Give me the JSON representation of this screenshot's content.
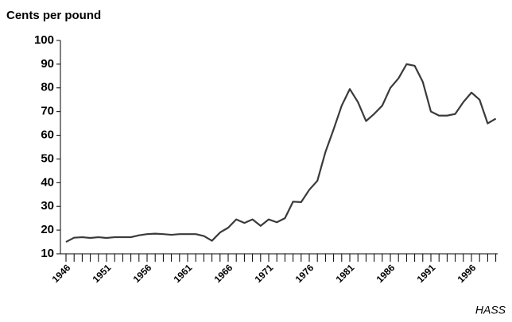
{
  "chart_data": {
    "type": "line",
    "title": "Cents per pound",
    "source": "HASS",
    "x": [
      1946,
      1947,
      1948,
      1949,
      1950,
      1951,
      1952,
      1953,
      1954,
      1955,
      1956,
      1957,
      1958,
      1959,
      1960,
      1961,
      1962,
      1963,
      1964,
      1965,
      1966,
      1967,
      1968,
      1969,
      1970,
      1971,
      1972,
      1973,
      1974,
      1975,
      1976,
      1977,
      1978,
      1979,
      1980,
      1981,
      1982,
      1983,
      1984,
      1985,
      1986,
      1987,
      1988,
      1989,
      1990,
      1991,
      1992,
      1993,
      1994,
      1995,
      1996,
      1997,
      1998,
      1999
    ],
    "series": [
      {
        "color": "#3a3a3a",
        "values": [
          15,
          16.8,
          17,
          16.7,
          17,
          16.7,
          17,
          17,
          17,
          17.8,
          18.3,
          18.5,
          18.3,
          18,
          18.3,
          18.3,
          18.3,
          17.5,
          15.5,
          19,
          21,
          24.5,
          23,
          24.5,
          21.8,
          24.5,
          23.3,
          25,
          32,
          31.8,
          37,
          40.8,
          53,
          62.5,
          72.5,
          79.5,
          74,
          66,
          69,
          72.5,
          80,
          84,
          90,
          89.3,
          82.5,
          70,
          68.3,
          68.3,
          69,
          74,
          78,
          75,
          65,
          67
        ]
      }
    ],
    "xlim": [
      1946,
      1999
    ],
    "xticks": [
      1946,
      1951,
      1956,
      1961,
      1966,
      1971,
      1976,
      1981,
      1986,
      1991,
      1996
    ],
    "ylim": [
      10,
      100
    ],
    "yticks": [
      10,
      20,
      30,
      40,
      50,
      60,
      70,
      80,
      90,
      100
    ]
  }
}
